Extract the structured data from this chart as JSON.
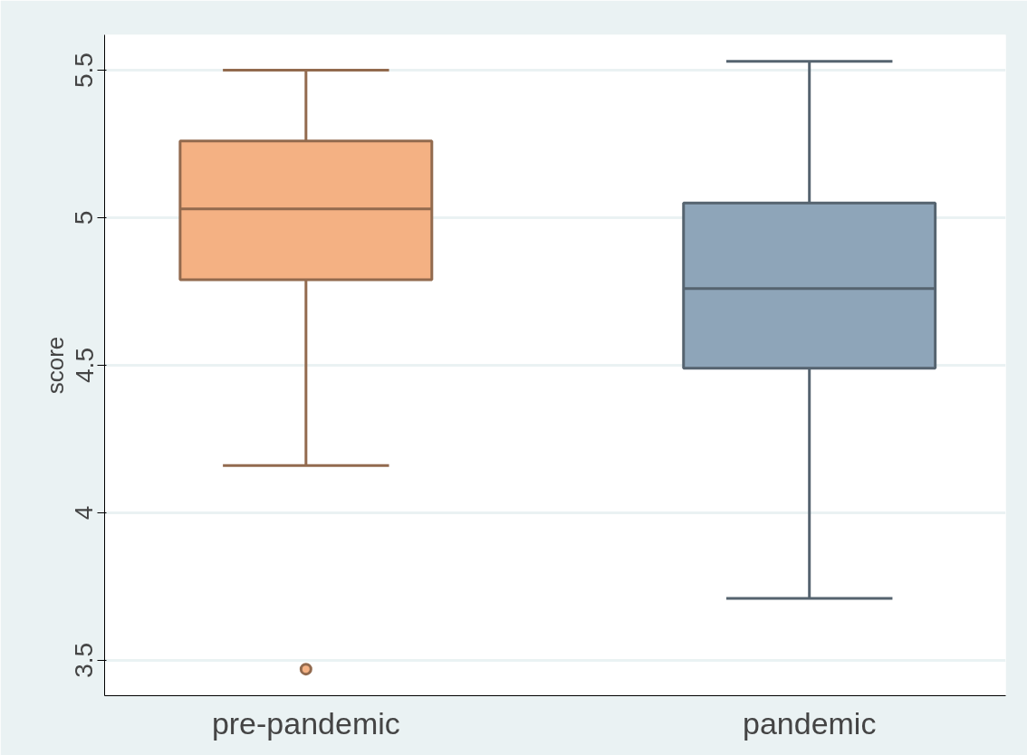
{
  "chart_data": {
    "type": "box",
    "ylabel": "score",
    "categories": [
      "pre-pandemic",
      "pandemic"
    ],
    "boxes": [
      {
        "low": 4.16,
        "q1": 4.79,
        "median": 5.03,
        "q3": 5.26,
        "high": 5.5,
        "outliers": [
          3.47
        ]
      },
      {
        "low": 3.71,
        "q1": 4.49,
        "median": 4.76,
        "q3": 5.05,
        "high": 5.53
      }
    ],
    "colors": [
      "#f4b183",
      "#8ea5b9"
    ],
    "ylim": [
      3.38,
      5.62
    ],
    "yticks": [
      3.5,
      4,
      4.5,
      5,
      5.5
    ],
    "grid": "y"
  }
}
